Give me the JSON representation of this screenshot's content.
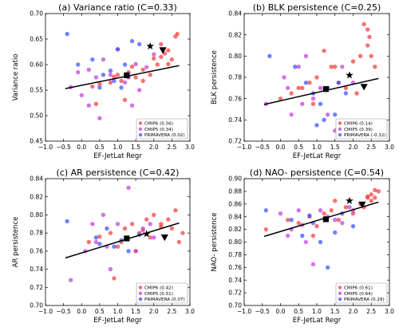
{
  "figure": {
    "colors": {
      "CMIP6": "#f23c3c",
      "CMIP5": "#c13ee0",
      "PRIMAVERA": "#3e4ff5",
      "regression": "#000000"
    }
  },
  "chart_data": [
    {
      "type": "scatter",
      "title": "(a) Variance ratio (C=0.33)",
      "xlabel": "EF-JetLat Regr",
      "ylabel": "Variance ratio",
      "xlim": [
        -1.0,
        3.0
      ],
      "ylim": [
        0.45,
        0.7
      ],
      "xticks": [
        "−1.0",
        "−0.5",
        "0.0",
        "0.5",
        "1.0",
        "1.5",
        "2.0",
        "2.5",
        "3.0"
      ],
      "yticks": [
        "0.45",
        "0.50",
        "0.55",
        "0.60",
        "0.65",
        "0.70"
      ],
      "legend_position": "lower right",
      "legend": [
        "CMIP6 (0.56)",
        "CMIP5 (0.34)",
        "PRIMAVERA (0.02)"
      ],
      "regression": {
        "x": [
          -0.45,
          2.7
        ],
        "y": [
          0.553,
          0.598
        ]
      },
      "square": [
        1.25,
        0.579
      ],
      "star": [
        1.9,
        0.636
      ],
      "triangle": [
        2.25,
        0.628
      ],
      "series": [
        {
          "name": "CMIP6",
          "points": [
            [
              0.3,
              0.557
            ],
            [
              0.5,
              0.562
            ],
            [
              0.8,
              0.565
            ],
            [
              0.9,
              0.576
            ],
            [
              1.0,
              0.58
            ],
            [
              1.1,
              0.568
            ],
            [
              1.3,
              0.585
            ],
            [
              1.5,
              0.575
            ],
            [
              1.7,
              0.59
            ],
            [
              1.9,
              0.58
            ],
            [
              2.0,
              0.612
            ],
            [
              2.1,
              0.6
            ],
            [
              2.2,
              0.615
            ],
            [
              2.3,
              0.622
            ],
            [
              2.4,
              0.628
            ],
            [
              2.5,
              0.61
            ],
            [
              2.6,
              0.655
            ],
            [
              2.65,
              0.66
            ],
            [
              2.2,
              0.64
            ],
            [
              1.4,
              0.596
            ],
            [
              2.4,
              0.601
            ],
            [
              1.7,
              0.568
            ],
            [
              0.4,
              0.523
            ],
            [
              1.2,
              0.531
            ]
          ]
        },
        {
          "name": "CMIP5",
          "points": [
            [
              -0.3,
              0.556
            ],
            [
              -0.1,
              0.585
            ],
            [
              0.0,
              0.54
            ],
            [
              0.2,
              0.52
            ],
            [
              0.4,
              0.575
            ],
            [
              0.6,
              0.61
            ],
            [
              0.8,
              0.58
            ],
            [
              1.0,
              0.63
            ],
            [
              1.2,
              0.565
            ],
            [
              1.4,
              0.52
            ],
            [
              1.6,
              0.55
            ],
            [
              1.8,
              0.595
            ],
            [
              2.0,
              0.62
            ],
            [
              0.2,
              0.59
            ],
            [
              0.5,
              0.495
            ],
            [
              1.5,
              0.601
            ],
            [
              1.3,
              0.575
            ]
          ]
        },
        {
          "name": "PRIMAVERA",
          "points": [
            [
              -0.4,
              0.66
            ],
            [
              -0.1,
              0.6
            ],
            [
              0.3,
              0.61
            ],
            [
              0.6,
              0.58
            ],
            [
              0.8,
              0.588
            ],
            [
              1.0,
              0.63
            ],
            [
              1.2,
              0.6
            ],
            [
              1.4,
              0.646
            ],
            [
              1.1,
              0.555
            ],
            [
              0.9,
              0.568
            ],
            [
              1.6,
              0.64
            ],
            [
              0.5,
              0.555
            ]
          ]
        }
      ]
    },
    {
      "type": "scatter",
      "title": "(b) BLK persistence (C=0.25)",
      "xlabel": "EF-JetLat Regr",
      "ylabel": "BLK persistence",
      "xlim": [
        -1.0,
        3.0
      ],
      "ylim": [
        0.72,
        0.84
      ],
      "xticks": [
        "−1.0",
        "−0.5",
        "0.0",
        "0.5",
        "1.0",
        "1.5",
        "2.0",
        "2.5",
        "3.0"
      ],
      "yticks": [
        "0.72",
        "0.74",
        "0.76",
        "0.78",
        "0.80",
        "0.82",
        "0.84"
      ],
      "legend_position": "lower right",
      "legend": [
        "CMIP6 (0.14)",
        "CMIP5 (0.39)",
        "PRIMAVERA (-0.12)"
      ],
      "regression": {
        "x": [
          -0.45,
          2.7
        ],
        "y": [
          0.7545,
          0.779
        ]
      },
      "square": [
        1.25,
        0.769
      ],
      "star": [
        1.9,
        0.782
      ],
      "triangle": [
        2.3,
        0.771
      ],
      "series": [
        {
          "name": "CMIP6",
          "points": [
            [
              0.0,
              0.76
            ],
            [
              0.3,
              0.765
            ],
            [
              0.5,
              0.77
            ],
            [
              0.8,
              0.775
            ],
            [
              1.0,
              0.78
            ],
            [
              1.2,
              0.805
            ],
            [
              1.4,
              0.79
            ],
            [
              1.6,
              0.775
            ],
            [
              1.8,
              0.77
            ],
            [
              2.0,
              0.795
            ],
            [
              2.2,
              0.8
            ],
            [
              2.4,
              0.81
            ],
            [
              2.5,
              0.8
            ],
            [
              2.6,
              0.79
            ],
            [
              2.3,
              0.83
            ],
            [
              2.1,
              0.765
            ],
            [
              0.9,
              0.755
            ],
            [
              1.5,
              0.79
            ],
            [
              2.4,
              0.825
            ],
            [
              2.45,
              0.818
            ],
            [
              0.6,
              0.77
            ]
          ]
        },
        {
          "name": "CMIP5",
          "points": [
            [
              -0.4,
              0.755
            ],
            [
              0.1,
              0.78
            ],
            [
              0.3,
              0.745
            ],
            [
              0.5,
              0.79
            ],
            [
              0.7,
              0.8
            ],
            [
              0.9,
              0.76
            ],
            [
              1.1,
              0.77
            ],
            [
              1.3,
              0.745
            ],
            [
              1.5,
              0.73
            ],
            [
              1.7,
              0.79
            ],
            [
              2.0,
              0.775
            ],
            [
              0.2,
              0.77
            ],
            [
              0.6,
              0.755
            ]
          ]
        },
        {
          "name": "PRIMAVERA",
          "points": [
            [
              -0.3,
              0.8
            ],
            [
              0.4,
              0.79
            ],
            [
              0.7,
              0.775
            ],
            [
              0.9,
              0.765
            ],
            [
              1.0,
              0.735
            ],
            [
              1.1,
              0.755
            ],
            [
              1.3,
              0.77
            ],
            [
              1.5,
              0.745
            ],
            [
              1.8,
              0.765
            ],
            [
              1.6,
              0.775
            ],
            [
              1.2,
              0.74
            ]
          ]
        }
      ]
    },
    {
      "type": "scatter",
      "title": "(c) AR persistence (C=0.42)",
      "xlabel": "EF-JetLat Regr",
      "ylabel": "AR persistence",
      "xlim": [
        -1.0,
        3.0
      ],
      "ylim": [
        0.7,
        0.84
      ],
      "xticks": [
        "−1.0",
        "−0.5",
        "0.0",
        "0.5",
        "1.0",
        "1.5",
        "2.0",
        "2.5",
        "3.0"
      ],
      "yticks": [
        "0.70",
        "0.72",
        "0.74",
        "0.76",
        "0.78",
        "0.80",
        "0.82",
        "0.84"
      ],
      "legend_position": "lower right",
      "legend": [
        "CMIP6 (0.42)",
        "CMIP5 (0.51)",
        "PRIMAVERA (0.07)"
      ],
      "regression": {
        "x": [
          -0.45,
          2.7
        ],
        "y": [
          0.7525,
          0.791
        ]
      },
      "square": [
        1.25,
        0.774
      ],
      "star": [
        1.8,
        0.779
      ],
      "triangle": [
        2.3,
        0.775
      ],
      "series": [
        {
          "name": "CMIP6",
          "points": [
            [
              0.2,
              0.77
            ],
            [
              0.5,
              0.776
            ],
            [
              0.8,
              0.78
            ],
            [
              1.0,
              0.765
            ],
            [
              1.2,
              0.785
            ],
            [
              1.4,
              0.79
            ],
            [
              1.6,
              0.78
            ],
            [
              1.8,
              0.795
            ],
            [
              2.0,
              0.8
            ],
            [
              2.2,
              0.79
            ],
            [
              2.4,
              0.795
            ],
            [
              2.6,
              0.805
            ],
            [
              2.7,
              0.77
            ],
            [
              1.5,
              0.76
            ],
            [
              1.9,
              0.775
            ],
            [
              0.9,
              0.73
            ],
            [
              2.5,
              0.785
            ],
            [
              1.1,
              0.77
            ],
            [
              2.2,
              0.787
            ],
            [
              1.7,
              0.783
            ],
            [
              2.8,
              0.78
            ]
          ]
        },
        {
          "name": "CMIP5",
          "points": [
            [
              -0.3,
              0.728
            ],
            [
              0.1,
              0.76
            ],
            [
              0.3,
              0.79
            ],
            [
              0.6,
              0.8
            ],
            [
              0.8,
              0.74
            ],
            [
              1.0,
              0.79
            ],
            [
              1.3,
              0.83
            ],
            [
              1.5,
              0.76
            ],
            [
              1.7,
              0.785
            ],
            [
              2.0,
              0.775
            ],
            [
              0.4,
              0.77
            ],
            [
              1.9,
              0.79
            ],
            [
              0.7,
              0.765
            ]
          ]
        },
        {
          "name": "PRIMAVERA",
          "points": [
            [
              -0.4,
              0.793
            ],
            [
              0.4,
              0.775
            ],
            [
              0.7,
              0.785
            ],
            [
              0.9,
              0.765
            ],
            [
              1.1,
              0.772
            ],
            [
              1.3,
              0.76
            ],
            [
              1.6,
              0.778
            ],
            [
              0.5,
              0.768
            ]
          ]
        }
      ]
    },
    {
      "type": "scatter",
      "title": "(d) NAO- persistence (C=0.54)",
      "xlabel": "EF-JetLat Regr",
      "ylabel": "NAO- persistence",
      "xlim": [
        -1.0,
        3.0
      ],
      "ylim": [
        0.7,
        0.9
      ],
      "xticks": [
        "−1.0",
        "−0.5",
        "0.0",
        "0.5",
        "1.0",
        "1.5",
        "2.0",
        "2.5",
        "3.0"
      ],
      "yticks": [
        "0.70",
        "0.72",
        "0.74",
        "0.76",
        "0.78",
        "0.80",
        "0.82",
        "0.84",
        "0.86",
        "0.88",
        "0.90"
      ],
      "legend_position": "lower right",
      "legend": [
        "CMIP6 (0.61)",
        "CMIP5 (0.64)",
        "PRIMAVERA (0.29)"
      ],
      "regression": {
        "x": [
          -0.45,
          2.7
        ],
        "y": [
          0.809,
          0.863
        ]
      },
      "square": [
        1.25,
        0.836
      ],
      "star": [
        1.9,
        0.865
      ],
      "triangle": [
        2.25,
        0.859
      ],
      "series": [
        {
          "name": "CMIP6",
          "points": [
            [
              -0.4,
              0.82
            ],
            [
              0.2,
              0.835
            ],
            [
              0.5,
              0.83
            ],
            [
              0.8,
              0.84
            ],
            [
              1.0,
              0.825
            ],
            [
              1.2,
              0.845
            ],
            [
              1.4,
              0.85
            ],
            [
              1.6,
              0.835
            ],
            [
              1.8,
              0.855
            ],
            [
              2.0,
              0.845
            ],
            [
              2.2,
              0.86
            ],
            [
              2.4,
              0.87
            ],
            [
              2.5,
              0.875
            ],
            [
              2.6,
              0.87
            ],
            [
              2.7,
              0.88
            ],
            [
              2.3,
              0.855
            ],
            [
              1.5,
              0.865
            ],
            [
              0.9,
              0.81
            ],
            [
              2.5,
              0.865
            ],
            [
              2.6,
              0.882
            ],
            [
              2.4,
              0.872
            ]
          ]
        },
        {
          "name": "CMIP5",
          "points": [
            [
              0.0,
              0.845
            ],
            [
              0.2,
              0.81
            ],
            [
              0.5,
              0.85
            ],
            [
              0.7,
              0.8
            ],
            [
              0.9,
              0.765
            ],
            [
              1.1,
              0.85
            ],
            [
              1.3,
              0.84
            ],
            [
              1.5,
              0.835
            ],
            [
              1.7,
              0.83
            ],
            [
              2.0,
              0.85
            ],
            [
              0.3,
              0.82
            ],
            [
              1.9,
              0.855
            ],
            [
              0.6,
              0.827
            ]
          ]
        },
        {
          "name": "PRIMAVERA",
          "points": [
            [
              -0.4,
              0.85
            ],
            [
              0.3,
              0.835
            ],
            [
              0.6,
              0.81
            ],
            [
              0.9,
              0.83
            ],
            [
              1.1,
              0.8
            ],
            [
              1.3,
              0.76
            ],
            [
              1.5,
              0.815
            ],
            [
              2.0,
              0.825
            ],
            [
              1.7,
              0.845
            ],
            [
              0.8,
              0.842
            ]
          ]
        }
      ]
    }
  ]
}
